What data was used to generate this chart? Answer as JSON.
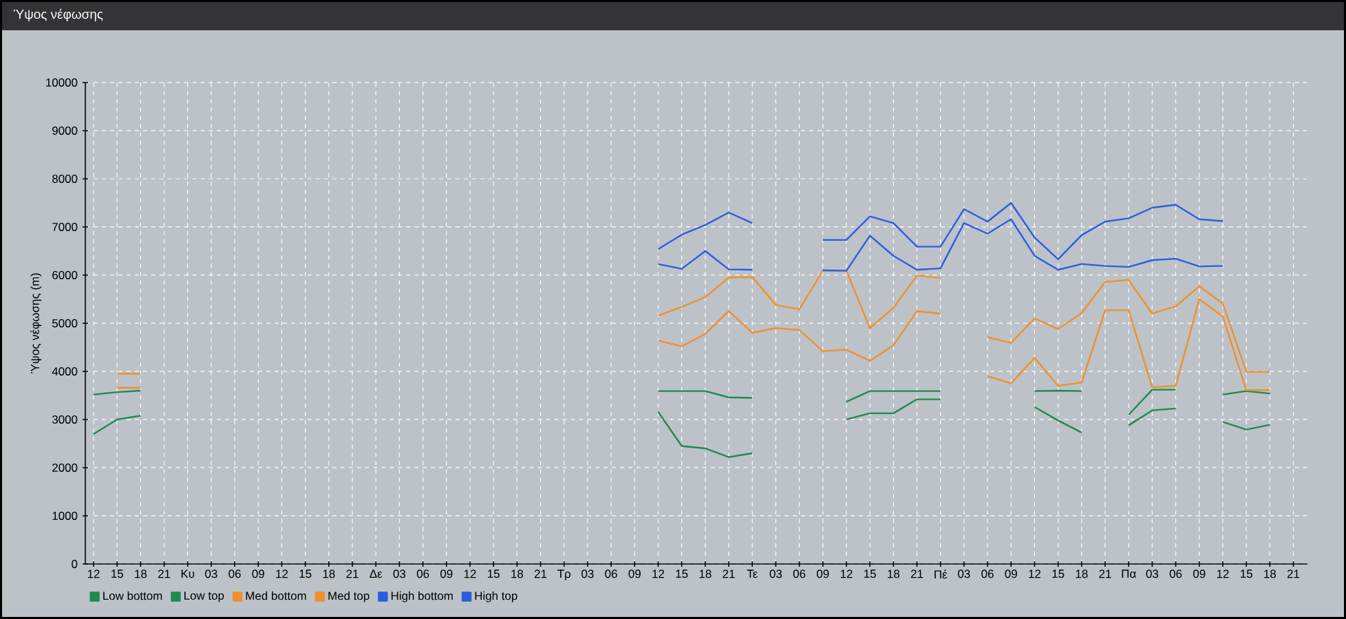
{
  "chart_data": {
    "type": "line",
    "title": "Ύψος νέφωσης",
    "ylabel": "Ύψος νέφωσης (m)",
    "categories": [
      "12",
      "15",
      "18",
      "21",
      "Κυ",
      "03",
      "06",
      "09",
      "12",
      "15",
      "18",
      "21",
      "Δε",
      "03",
      "06",
      "09",
      "12",
      "15",
      "18",
      "21",
      "Τρ",
      "03",
      "06",
      "09",
      "12",
      "15",
      "18",
      "21",
      "Τε",
      "03",
      "06",
      "09",
      "12",
      "15",
      "18",
      "21",
      "Πέ",
      "03",
      "06",
      "09",
      "12",
      "15",
      "18",
      "21",
      "Πα",
      "03",
      "06",
      "09",
      "12",
      "15",
      "18",
      "21"
    ],
    "ylim": [
      0,
      10000
    ],
    "yticks": [
      0,
      1000,
      2000,
      3000,
      4000,
      5000,
      6000,
      7000,
      8000,
      9000,
      10000
    ],
    "grid": true,
    "legend": "bottom",
    "marker": "none",
    "line_style": "solid",
    "series": [
      {
        "name": "Low bottom",
        "color": "#1e8a4e",
        "values": [
          2700,
          3000,
          3080,
          null,
          null,
          null,
          null,
          null,
          null,
          null,
          null,
          null,
          null,
          null,
          null,
          null,
          null,
          null,
          null,
          null,
          null,
          null,
          null,
          null,
          3160,
          2450,
          2400,
          2220,
          2300,
          null,
          null,
          null,
          3000,
          3130,
          3130,
          3420,
          3420,
          null,
          null,
          null,
          3260,
          2980,
          2730,
          null,
          2880,
          3190,
          3230,
          null,
          2950,
          2790,
          2890,
          null
        ]
      },
      {
        "name": "Low top",
        "color": "#1e8a4e",
        "values": [
          3520,
          3570,
          3600,
          null,
          null,
          null,
          null,
          null,
          null,
          null,
          null,
          null,
          null,
          null,
          null,
          null,
          null,
          null,
          null,
          null,
          null,
          null,
          null,
          null,
          3590,
          3590,
          3590,
          3460,
          3450,
          null,
          null,
          null,
          3370,
          3590,
          3590,
          3590,
          3590,
          null,
          null,
          null,
          3590,
          3600,
          3590,
          null,
          3100,
          3620,
          3620,
          null,
          3520,
          3590,
          3540,
          null
        ]
      },
      {
        "name": "Med bottom",
        "color": "#f0902a",
        "values": [
          null,
          3660,
          3660,
          null,
          null,
          null,
          null,
          null,
          null,
          null,
          null,
          null,
          null,
          null,
          null,
          null,
          null,
          null,
          null,
          null,
          null,
          null,
          null,
          null,
          4640,
          4520,
          4780,
          5250,
          4800,
          4900,
          4860,
          4420,
          4450,
          4220,
          4540,
          5250,
          5200,
          null,
          3900,
          3750,
          4280,
          3700,
          3770,
          5270,
          5270,
          3670,
          3700,
          5500,
          5140,
          3610,
          3610,
          null
        ]
      },
      {
        "name": "Med top",
        "color": "#f0902a",
        "values": [
          null,
          3950,
          3950,
          null,
          null,
          null,
          null,
          null,
          null,
          null,
          null,
          null,
          null,
          null,
          null,
          null,
          null,
          null,
          null,
          null,
          null,
          null,
          null,
          null,
          5160,
          5340,
          5540,
          5950,
          5960,
          5380,
          5290,
          6090,
          6090,
          4900,
          5320,
          5990,
          5940,
          null,
          4710,
          4590,
          5100,
          4880,
          5210,
          5860,
          5900,
          5200,
          5350,
          5770,
          5410,
          3990,
          3990,
          null
        ]
      },
      {
        "name": "High bottom",
        "color": "#2a5ee0",
        "values": [
          null,
          null,
          null,
          null,
          null,
          null,
          null,
          null,
          null,
          null,
          null,
          null,
          null,
          null,
          null,
          null,
          null,
          null,
          null,
          null,
          null,
          null,
          null,
          null,
          6230,
          6130,
          6500,
          6120,
          6110,
          null,
          null,
          6100,
          6090,
          6820,
          6400,
          6110,
          6140,
          7080,
          6860,
          7160,
          6400,
          6110,
          6230,
          6190,
          6170,
          6310,
          6340,
          6180,
          6190,
          null,
          null,
          null
        ]
      },
      {
        "name": "High top",
        "color": "#2a5ee0",
        "values": [
          null,
          null,
          null,
          null,
          null,
          null,
          null,
          null,
          null,
          null,
          null,
          null,
          null,
          null,
          null,
          null,
          null,
          null,
          null,
          null,
          null,
          null,
          null,
          null,
          6540,
          6840,
          7040,
          7300,
          7080,
          null,
          null,
          6730,
          6730,
          7220,
          7080,
          6590,
          6590,
          7370,
          7110,
          7500,
          6780,
          6330,
          6830,
          7110,
          7180,
          7400,
          7460,
          7160,
          7120,
          null,
          null,
          null
        ]
      }
    ]
  }
}
